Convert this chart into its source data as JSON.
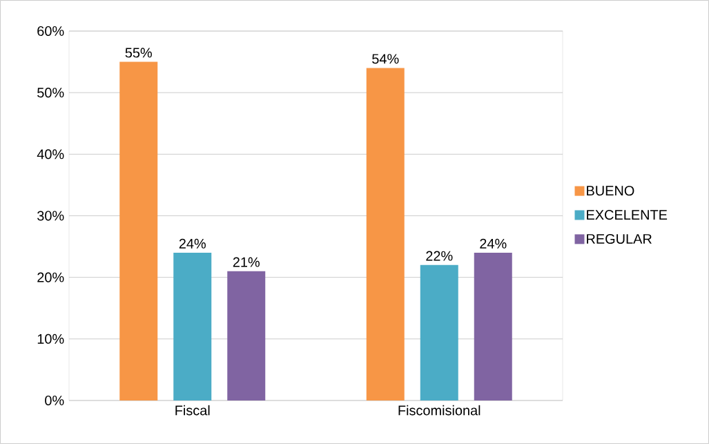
{
  "chart_data": {
    "type": "bar",
    "categories": [
      "Fiscal",
      "Fiscomisional"
    ],
    "series": [
      {
        "name": "BUENO",
        "color": "#f79646",
        "values": [
          55,
          54
        ],
        "value_labels": [
          "55%",
          "54%"
        ]
      },
      {
        "name": "EXCELENTE",
        "color": "#4bacc6",
        "values": [
          24,
          22
        ],
        "value_labels": [
          "24%",
          "22%"
        ]
      },
      {
        "name": "REGULAR",
        "color": "#8064a2",
        "values": [
          21,
          24
        ],
        "value_labels": [
          "21%",
          "24%"
        ]
      }
    ],
    "ylim": [
      0,
      60
    ],
    "yticks": [
      {
        "value": 0,
        "label": "0%"
      },
      {
        "value": 10,
        "label": "10%"
      },
      {
        "value": 20,
        "label": "20%"
      },
      {
        "value": 30,
        "label": "30%"
      },
      {
        "value": 40,
        "label": "40%"
      },
      {
        "value": 50,
        "label": "50%"
      },
      {
        "value": 60,
        "label": "60%"
      }
    ],
    "grid": "y",
    "legend": "right"
  }
}
